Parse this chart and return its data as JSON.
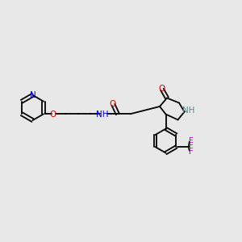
{
  "bg_color": "#e8e8e8",
  "figsize": [
    3.0,
    3.0
  ],
  "dpi": 100,
  "colors": {
    "C": "#000000",
    "N": "#0000cc",
    "O": "#cc0000",
    "F": "#cc00cc",
    "H_label": "#4a9090",
    "bond": "#000000"
  },
  "font_size": 7.5,
  "bond_lw": 1.3
}
